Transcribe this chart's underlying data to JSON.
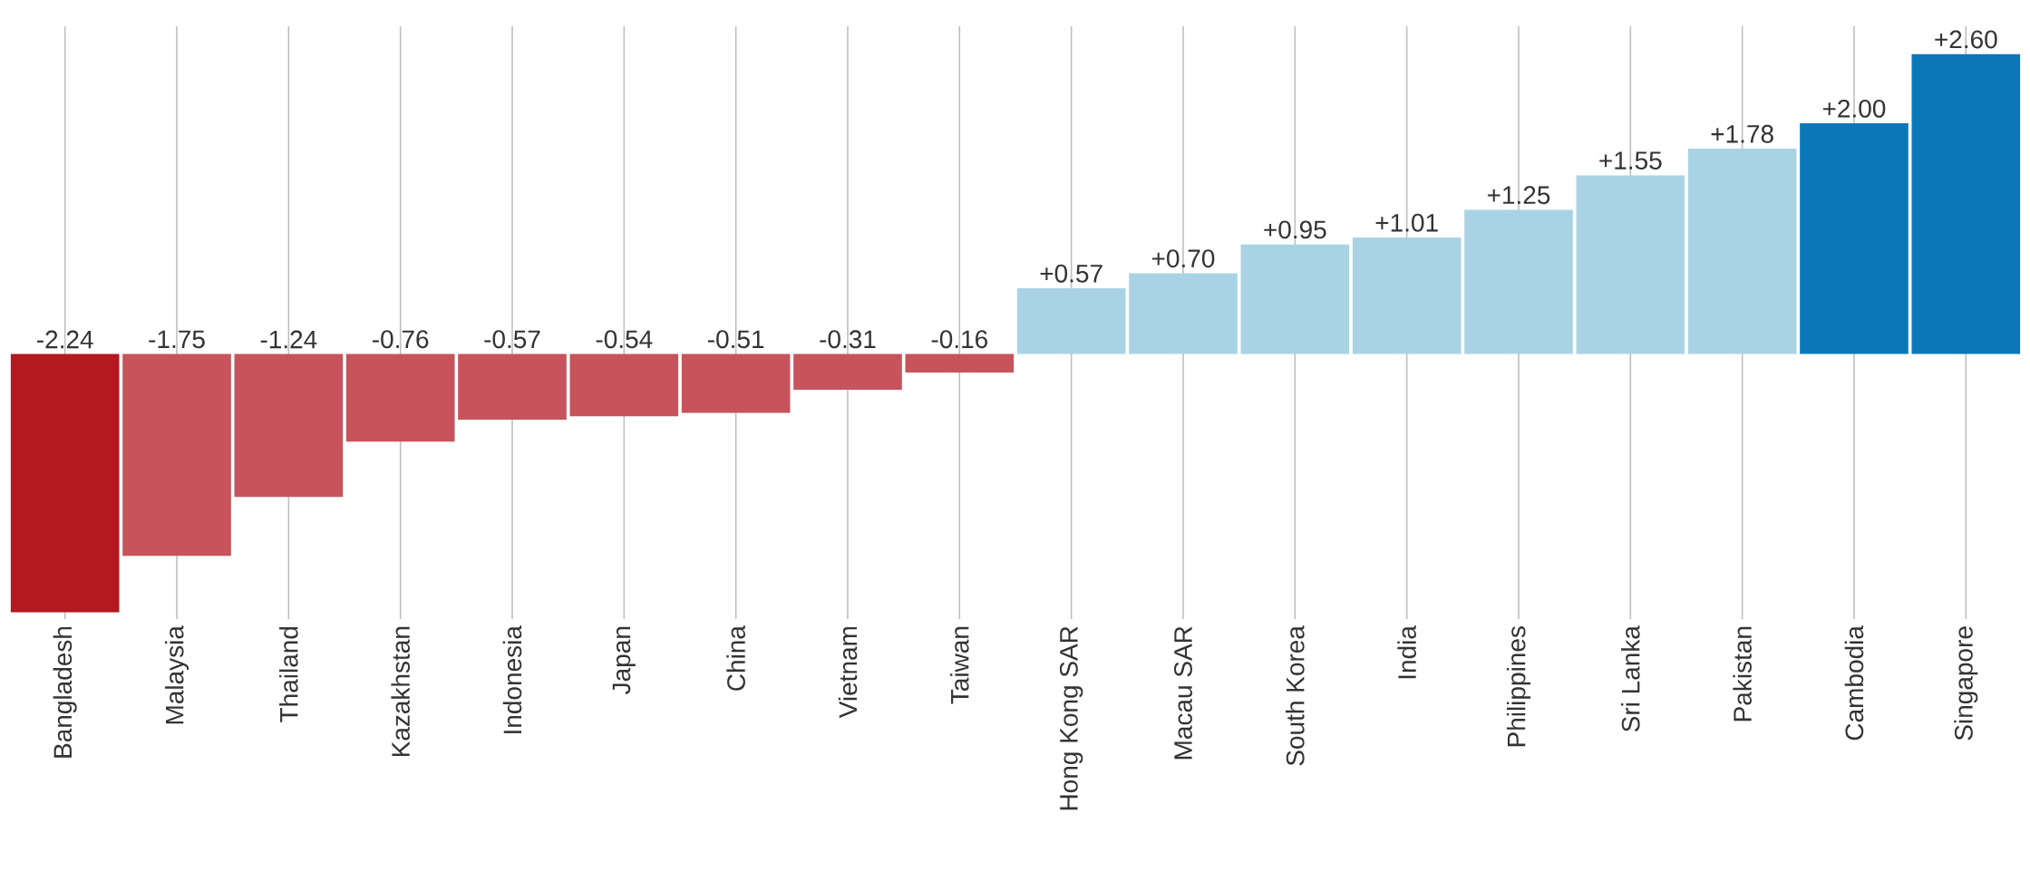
{
  "chart_data": {
    "type": "bar",
    "categories": [
      "Bangladesh",
      "Malaysia",
      "Thailand",
      "Kazakhstan",
      "Indonesia",
      "Japan",
      "China",
      "Vietnam",
      "Taiwan",
      "Hong Kong SAR",
      "Macau SAR",
      "South Korea",
      "India",
      "Philippines",
      "Sri Lanka",
      "Pakistan",
      "Cambodia",
      "Singapore"
    ],
    "values": [
      -2.24,
      -1.75,
      -1.24,
      -0.76,
      -0.57,
      -0.54,
      -0.51,
      -0.31,
      -0.16,
      0.57,
      0.7,
      0.95,
      1.01,
      1.25,
      1.55,
      1.78,
      2.0,
      2.6
    ],
    "value_labels": [
      "-2.24",
      "-1.75",
      "-1.24",
      "-0.76",
      "-0.57",
      "-0.54",
      "-0.51",
      "-0.31",
      "-0.16",
      "+0.57",
      "+0.70",
      "+0.95",
      "+1.01",
      "+1.25",
      "+1.55",
      "+1.78",
      "+2.00",
      "+2.60"
    ],
    "colors": [
      "#b3191f",
      "#c7545c",
      "#c7545c",
      "#c7545c",
      "#c7545c",
      "#c7545c",
      "#c7545c",
      "#c7545c",
      "#c7545c",
      "#a9d3e5",
      "#a9d3e5",
      "#a9d3e5",
      "#a9d3e5",
      "#a9d3e5",
      "#a9d3e5",
      "#a9d3e5",
      "#0a78b8",
      "#0a78b8"
    ],
    "grid": "x"
  }
}
